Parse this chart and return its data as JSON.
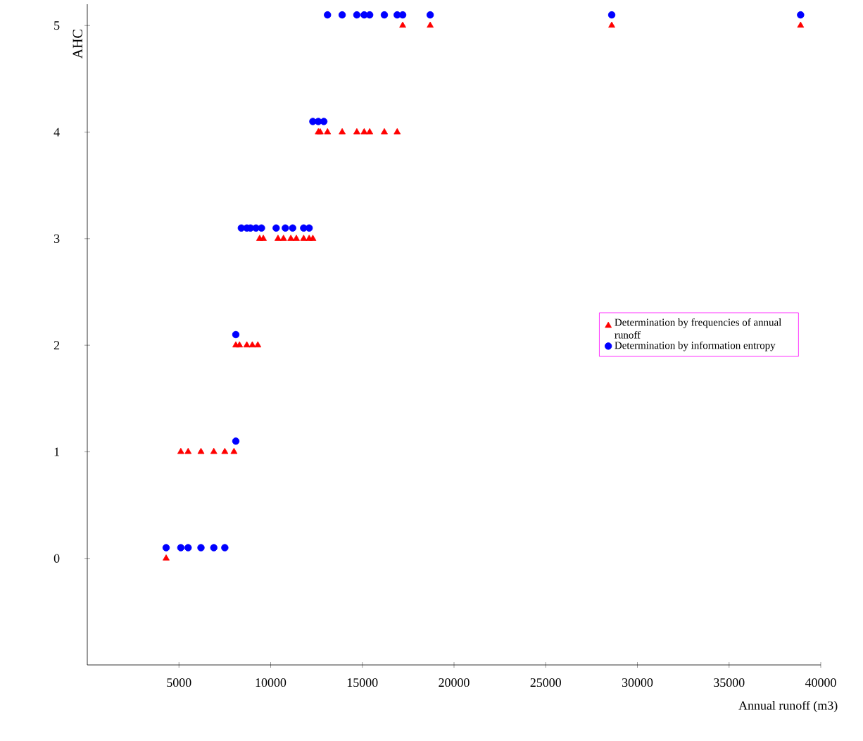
{
  "chart_data": {
    "type": "scatter",
    "xlabel": "Annual runoff (m3)",
    "ylabel": "AHC",
    "xlim": [
      0,
      40000
    ],
    "xticks": [
      5000,
      10000,
      15000,
      20000,
      25000,
      30000,
      35000,
      40000
    ],
    "ylim": [
      -1,
      5.2
    ],
    "yticks": [
      0,
      1,
      2,
      3,
      4,
      5
    ],
    "legend": "right",
    "grid": false,
    "series": [
      {
        "name": "Determination by frequencies of annual runoff",
        "color": "#ff0000",
        "marker": "triangle",
        "x": [
          4300,
          5100,
          5500,
          6200,
          6900,
          7500,
          8000,
          8100,
          8300,
          8700,
          9000,
          9300,
          9400,
          9600,
          10400,
          10700,
          11100,
          11400,
          11800,
          12100,
          12300,
          12600,
          12700,
          13100,
          13900,
          14700,
          15100,
          15400,
          16200,
          16900,
          17200,
          18700,
          28600,
          38900
        ],
        "values": [
          0,
          1,
          1,
          1,
          1,
          1,
          1,
          2,
          2,
          2,
          2,
          2,
          3,
          3,
          3,
          3,
          3,
          3,
          3,
          3,
          3,
          4,
          4,
          4,
          4,
          4,
          4,
          4,
          4,
          4,
          5,
          5,
          5,
          5
        ]
      },
      {
        "name": "Determination by information entropy",
        "color": "#0000ff",
        "marker": "circle",
        "x": [
          4300,
          5100,
          5500,
          6200,
          6900,
          7500,
          8100,
          8100,
          8400,
          8700,
          8900,
          9200,
          9500,
          10300,
          10800,
          11200,
          11800,
          12100,
          12300,
          12600,
          12900,
          13100,
          13900,
          14700,
          15100,
          15400,
          16200,
          16900,
          17200,
          18700,
          28600,
          38900
        ],
        "values": [
          0.1,
          0.1,
          0.1,
          0.1,
          0.1,
          0.1,
          1.1,
          2.1,
          3.1,
          3.1,
          3.1,
          3.1,
          3.1,
          3.1,
          3.1,
          3.1,
          3.1,
          3.1,
          4.1,
          4.1,
          4.1,
          5.1,
          5.1,
          5.1,
          5.1,
          5.1,
          5.1,
          5.1,
          5.1,
          5.1,
          5.1,
          5.1
        ]
      }
    ]
  }
}
